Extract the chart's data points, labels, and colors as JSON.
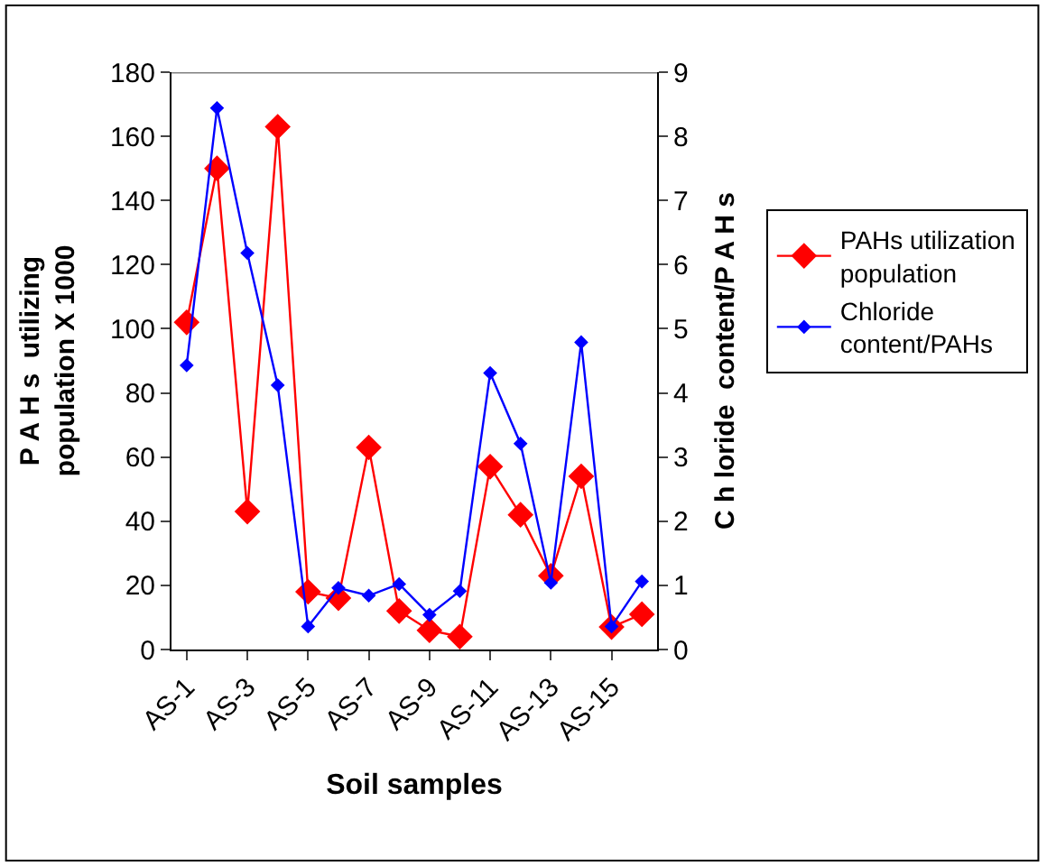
{
  "chart_data": {
    "type": "line",
    "xlabel": "Soil samples",
    "ylabel": "P A H s  utilizing\npopulation X 1000",
    "y2label": "C h loride  content/P A H s",
    "categories": [
      "AS-1",
      null,
      "AS-3",
      null,
      "AS-5",
      null,
      "AS-7",
      null,
      "AS-9",
      null,
      "AS-11",
      null,
      "AS-13",
      null,
      "AS-15",
      null
    ],
    "series": [
      {
        "name": "PAHs utilization\npopulation",
        "color": "#ff0000",
        "values": [
          102,
          150,
          43,
          163,
          18,
          16,
          63,
          12,
          6,
          4,
          57,
          42,
          23,
          54,
          7,
          11
        ]
      },
      {
        "name": "Chloride\ncontent/PAHs",
        "color": "#0000ff",
        "axis": "y2",
        "values": [
          4.43,
          8.44,
          6.18,
          4.12,
          0.36,
          0.96,
          0.84,
          1.02,
          0.54,
          0.91,
          4.31,
          3.21,
          1.04,
          4.79,
          0.36,
          1.06
        ]
      }
    ],
    "ylim": [
      0,
      180
    ],
    "yticks": [
      0,
      20,
      40,
      60,
      80,
      100,
      120,
      140,
      160,
      180
    ],
    "y2lim": [
      0,
      9
    ],
    "y2ticks": [
      0,
      1,
      2,
      3,
      4,
      5,
      6,
      7,
      8,
      9
    ],
    "marker": "diamond",
    "legend": "right"
  }
}
